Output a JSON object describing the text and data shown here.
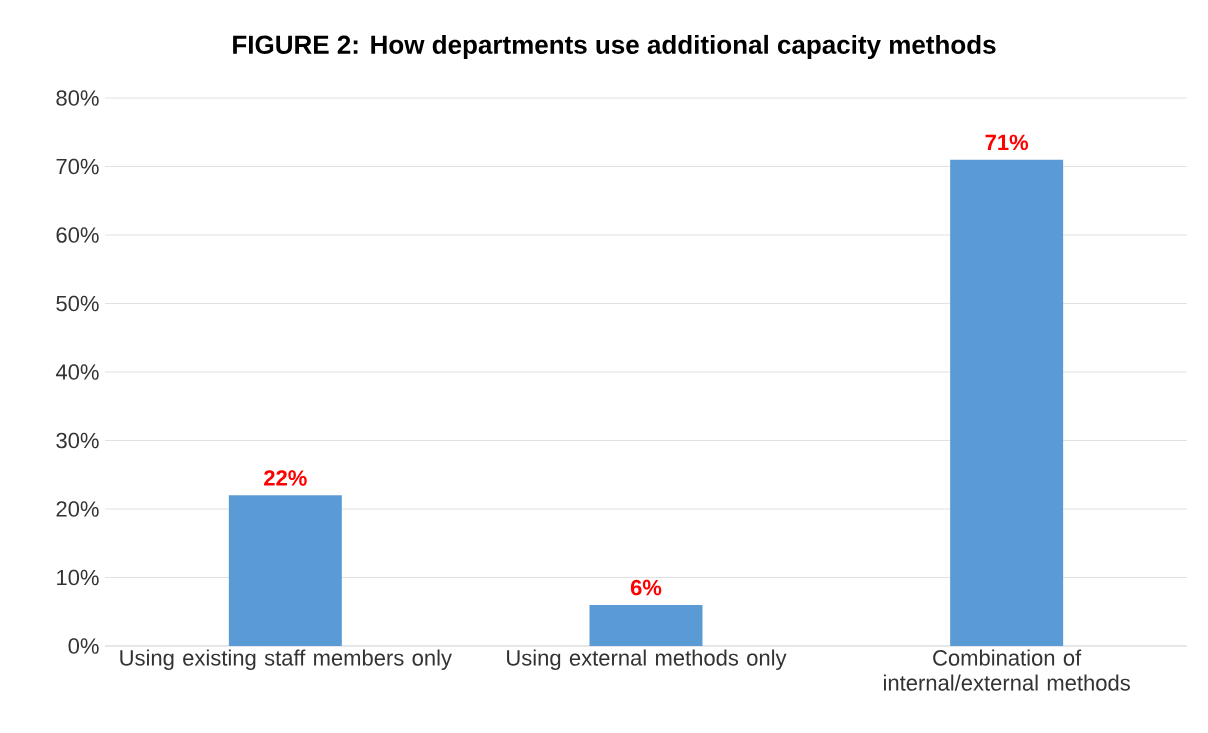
{
  "chart_data": {
    "type": "bar",
    "title": "FIGURE 2: How departments use additional capacity methods",
    "categories": [
      "Using existing staff members only",
      "Using external methods only",
      "Combination of internal/external methods"
    ],
    "values": [
      22,
      6,
      71
    ],
    "value_labels": [
      "22%",
      "6%",
      "71%"
    ],
    "color": "#5b9bd5",
    "ylim": [
      0,
      80
    ],
    "yticks": [
      {
        "value": 0,
        "label": "0%"
      },
      {
        "value": 10,
        "label": "10%"
      },
      {
        "value": 20,
        "label": "20%"
      },
      {
        "value": 30,
        "label": "30%"
      },
      {
        "value": 40,
        "label": "40%"
      },
      {
        "value": 50,
        "label": "50%"
      },
      {
        "value": 60,
        "label": "60%"
      },
      {
        "value": 70,
        "label": "70%"
      },
      {
        "value": 80,
        "label": "80%"
      }
    ],
    "grid": "y"
  }
}
